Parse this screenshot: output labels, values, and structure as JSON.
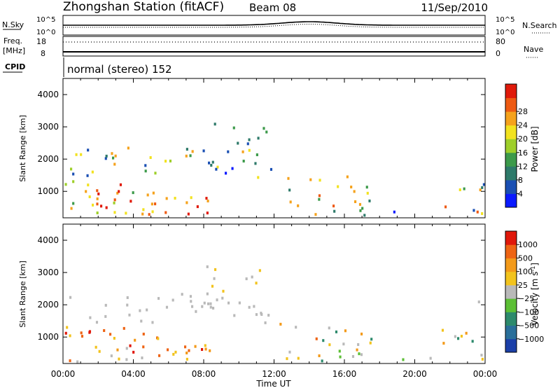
{
  "header": {
    "station": "Zhongshan Station (fitACF)",
    "beam": "Beam 08",
    "date": "11/Sep/2010"
  },
  "status_panels": {
    "nsky_label": "N.Sky",
    "nsky_ticks": [
      "10^5",
      "10^0"
    ],
    "nsearch_label": "N.Search",
    "nsearch_ticks": [
      "10^5",
      "10^0"
    ],
    "freq_label": "Freq.",
    "freq_unit": "[MHz]",
    "freq_ticks": [
      "18",
      "8"
    ],
    "nave_label": "Nave",
    "nave_ticks": [
      "80",
      "0"
    ],
    "cpid_label": "CPID",
    "cpid_value": "normal (stereo) 152"
  },
  "chart_data": [
    {
      "type": "heatmap",
      "quantity": "Power",
      "ylabel": "Slant Range [km]",
      "xlabel": "Time UT",
      "x_ticks": [
        "00:00",
        "04:00",
        "08:00",
        "12:00",
        "16:00",
        "20:00",
        "00:00"
      ],
      "xlim_hours": [
        0,
        24
      ],
      "y_ticks": [
        1000,
        2000,
        3000,
        4000
      ],
      "ylim_km": [
        180,
        4500
      ],
      "colorbar": {
        "label": "Power [dB]",
        "ticks": [
          "4",
          "8",
          "12",
          "16",
          "20",
          "24",
          "28"
        ],
        "colors": [
          "#0a1aff",
          "#1a4fb3",
          "#2e7a6a",
          "#3c9a4a",
          "#9ecf2a",
          "#f2e21f",
          "#f5a21c",
          "#ee5a12",
          "#e01a0a"
        ]
      }
    },
    {
      "type": "heatmap",
      "quantity": "Velocity",
      "ylabel": "Slant Range [km]",
      "xlabel": "Time UT",
      "x_ticks": [
        "00:00",
        "04:00",
        "08:00",
        "12:00",
        "16:00",
        "20:00",
        "00:00"
      ],
      "xlim_hours": [
        0,
        24
      ],
      "y_ticks": [
        1000,
        2000,
        3000,
        4000
      ],
      "ylim_km": [
        180,
        4500
      ],
      "colorbar": {
        "label": "Velocity [m s",
        "label_sup": "-1",
        "label_end": "]",
        "ticks": [
          "1000",
          "500",
          "100",
          "25",
          "−25",
          "−100",
          "−500",
          "−1000"
        ],
        "colors": [
          "#1b3fa8",
          "#2a6f9a",
          "#2d8a6c",
          "#5cbf35",
          "#b9b9b9",
          "#f2c31d",
          "#f39a1a",
          "#ee6414",
          "#e0180a"
        ]
      }
    }
  ]
}
